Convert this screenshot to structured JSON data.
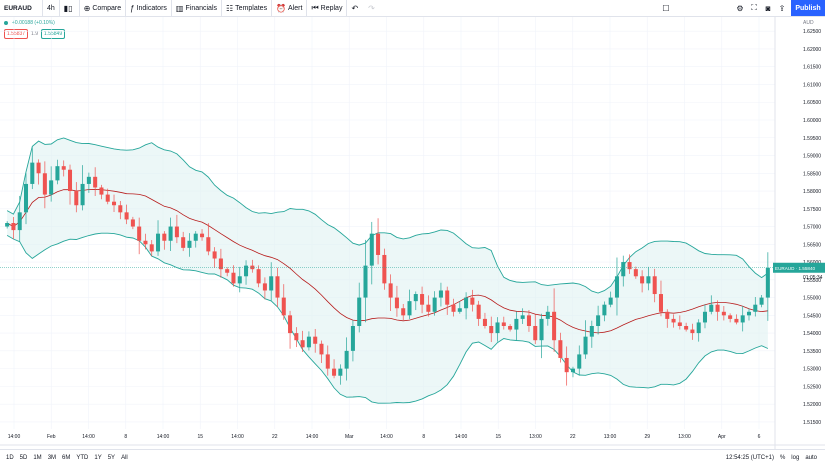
{
  "toolbar": {
    "symbol": "EURAUD",
    "interval": "4h",
    "compare": "Compare",
    "indicators": "Indicators",
    "financials": "Financials",
    "templates": "Templates",
    "alert": "Alert",
    "replay": "Replay",
    "publish": "Publish"
  },
  "legend": {
    "change": "+0.00188 (+0.10%)",
    "sell": "1.55837",
    "spread": "1.9",
    "buy": "1.55849"
  },
  "price_axis": {
    "currency": "AUD",
    "ticks": [
      "1.62500",
      "1.62000",
      "1.61500",
      "1.61000",
      "1.60500",
      "1.60000",
      "1.59500",
      "1.59000",
      "1.58500",
      "1.58000",
      "1.57500",
      "1.57000",
      "1.56500",
      "1.56000",
      "1.55500",
      "1.55000",
      "1.54500",
      "1.54000",
      "1.53500",
      "1.53000",
      "1.52500",
      "1.52000",
      "1.51500"
    ],
    "last_label": "EURAUD · 1.55840",
    "countdown": "01:05:34",
    "last_color": "#26a69a"
  },
  "time_axis": {
    "labels": [
      "14:00",
      "Feb",
      "14:00",
      "8",
      "14:00",
      "15",
      "14:00",
      "22",
      "14:00",
      "Mar",
      "14:00",
      "8",
      "14:00",
      "15",
      "13:00",
      "22",
      "13:00",
      "29",
      "13:00",
      "Apr",
      "6"
    ]
  },
  "bottombar": {
    "ranges": [
      "1D",
      "5D",
      "1M",
      "3M",
      "6M",
      "YTD",
      "1Y",
      "5Y",
      "All"
    ],
    "clock": "12:54:25 (UTC+1)",
    "percent": "%",
    "log": "log",
    "auto": "auto"
  },
  "chart_data": {
    "type": "candlestick",
    "indicator": "Bollinger Bands",
    "ylim": [
      1.513,
      1.629
    ],
    "last_price": 1.5584,
    "up_color": "#26a69a",
    "down_color": "#ef5350",
    "band_color": "#26a69a",
    "basis_color": "#b71c1c",
    "fill_color": "#e0f2f1",
    "series": [
      {
        "name": "close",
        "values": [
          1.571,
          1.569,
          1.574,
          1.582,
          1.588,
          1.585,
          1.579,
          1.583,
          1.587,
          1.586,
          1.58,
          1.576,
          1.582,
          1.584,
          1.581,
          1.579,
          1.577,
          1.576,
          1.574,
          1.572,
          1.57,
          1.566,
          1.565,
          1.563,
          1.568,
          1.566,
          1.57,
          1.567,
          1.564,
          1.566,
          1.568,
          1.567,
          1.563,
          1.561,
          1.558,
          1.557,
          1.554,
          1.556,
          1.559,
          1.558,
          1.554,
          1.552,
          1.556,
          1.55,
          1.545,
          1.54,
          1.538,
          1.536,
          1.539,
          1.537,
          1.534,
          1.53,
          1.528,
          1.53,
          1.535,
          1.542,
          1.55,
          1.559,
          1.568,
          1.562,
          1.554,
          1.55,
          1.547,
          1.545,
          1.549,
          1.551,
          1.548,
          1.546,
          1.55,
          1.552,
          1.548,
          1.546,
          1.547,
          1.55,
          1.548,
          1.544,
          1.542,
          1.54,
          1.543,
          1.542,
          1.541,
          1.544,
          1.545,
          1.542,
          1.538,
          1.544,
          1.546,
          1.538,
          1.533,
          1.529,
          1.53,
          1.534,
          1.539,
          1.542,
          1.545,
          1.548,
          1.55,
          1.556,
          1.56,
          1.558,
          1.556,
          1.554,
          1.556,
          1.551,
          1.546,
          1.544,
          1.543,
          1.542,
          1.541,
          1.54,
          1.543,
          1.546,
          1.548,
          1.546,
          1.545,
          1.544,
          1.543,
          1.545,
          1.546,
          1.548,
          1.55,
          1.5584
        ]
      }
    ]
  }
}
